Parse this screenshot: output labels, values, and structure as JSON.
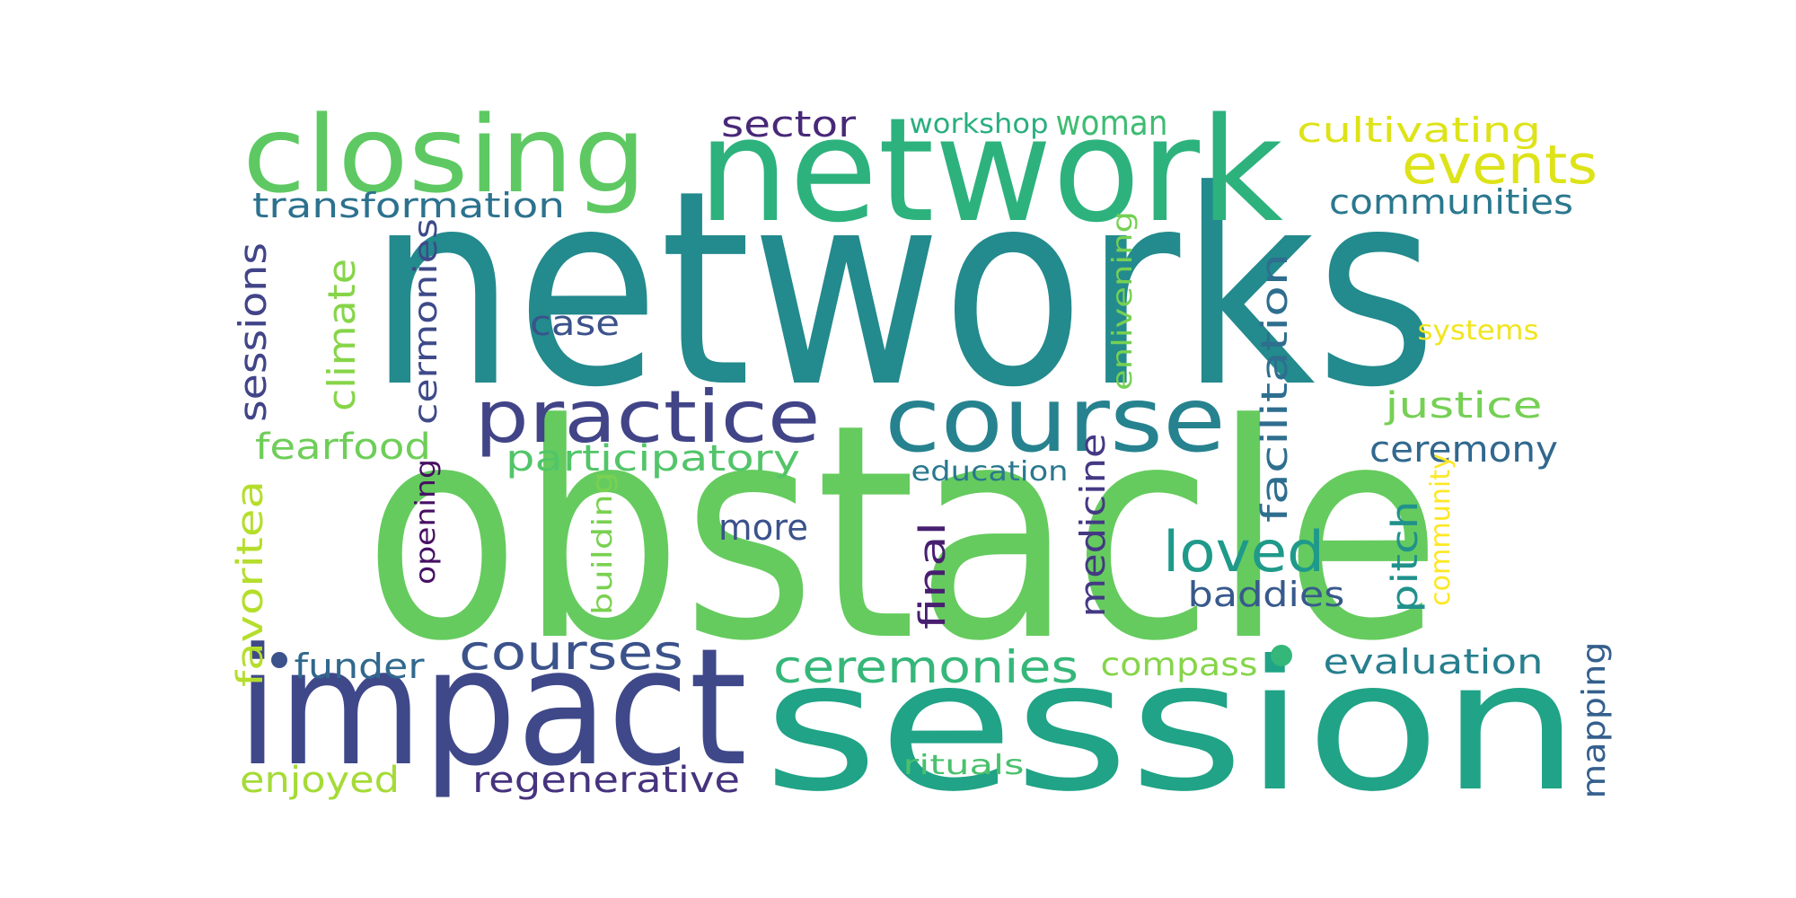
{
  "words": [
    {
      "text": "networks",
      "color": "#238a8d"
    },
    {
      "text": "obstacle",
      "color": "#65cb5e"
    },
    {
      "text": "network",
      "color": "#2db27d"
    },
    {
      "text": "closing",
      "color": "#5ec962"
    },
    {
      "text": "impact",
      "color": "#3f4889"
    },
    {
      "text": "session",
      "color": "#20a386"
    },
    {
      "text": "practice",
      "color": "#414487"
    },
    {
      "text": "course",
      "color": "#26828e"
    },
    {
      "text": "events",
      "color": "#dde318"
    },
    {
      "text": "cultivating",
      "color": "#dde318"
    },
    {
      "text": "sector",
      "color": "#482878"
    },
    {
      "text": "workshop",
      "color": "#29af7f"
    },
    {
      "text": "woman",
      "color": "#3ebc73"
    },
    {
      "text": "transformation",
      "color": "#2c728e"
    },
    {
      "text": "communities",
      "color": "#2a788e"
    },
    {
      "text": "case",
      "color": "#3b528b"
    },
    {
      "text": "systems",
      "color": "#f1e51d"
    },
    {
      "text": "sessions",
      "color": "#414487"
    },
    {
      "text": "climate",
      "color": "#86d549"
    },
    {
      "text": "cermonies",
      "color": "#3e4a89"
    },
    {
      "text": "enlivening",
      "color": "#75d054"
    },
    {
      "text": "facilitation",
      "color": "#2e6e8e"
    },
    {
      "text": "justice",
      "color": "#75d054"
    },
    {
      "text": "fearfood",
      "color": "#6ece58"
    },
    {
      "text": "participatory",
      "color": "#52c569"
    },
    {
      "text": "ceremony",
      "color": "#31688e"
    },
    {
      "text": "education",
      "color": "#2a788e"
    },
    {
      "text": "favoritea",
      "color": "#b5de2b"
    },
    {
      "text": "opening",
      "color": "#471063"
    },
    {
      "text": "more",
      "color": "#3b528b"
    },
    {
      "text": "building",
      "color": "#7ad151"
    },
    {
      "text": "medicine",
      "color": "#443983"
    },
    {
      "text": "loved",
      "color": "#1f9a8a"
    },
    {
      "text": "pitch",
      "color": "#21918c"
    },
    {
      "text": "community",
      "color": "#fde725"
    },
    {
      "text": "final",
      "color": "#481f70"
    },
    {
      "text": "baddies",
      "color": "#375a8c"
    },
    {
      "text": "funder",
      "color": "#31688e"
    },
    {
      "text": "courses",
      "color": "#3b528b"
    },
    {
      "text": "ceremonies",
      "color": "#35b779"
    },
    {
      "text": "compass",
      "color": "#86d549"
    },
    {
      "text": "evaluation",
      "color": "#277f8e"
    },
    {
      "text": "mapping",
      "color": "#355f8d"
    },
    {
      "text": "enjoyed",
      "color": "#a5db36"
    },
    {
      "text": "regenerative",
      "color": "#46337e"
    },
    {
      "text": "rituals",
      "color": "#4ac16d"
    }
  ],
  "dots": [
    {
      "color": "#3b528b"
    },
    {
      "color": "#35b779"
    }
  ]
}
